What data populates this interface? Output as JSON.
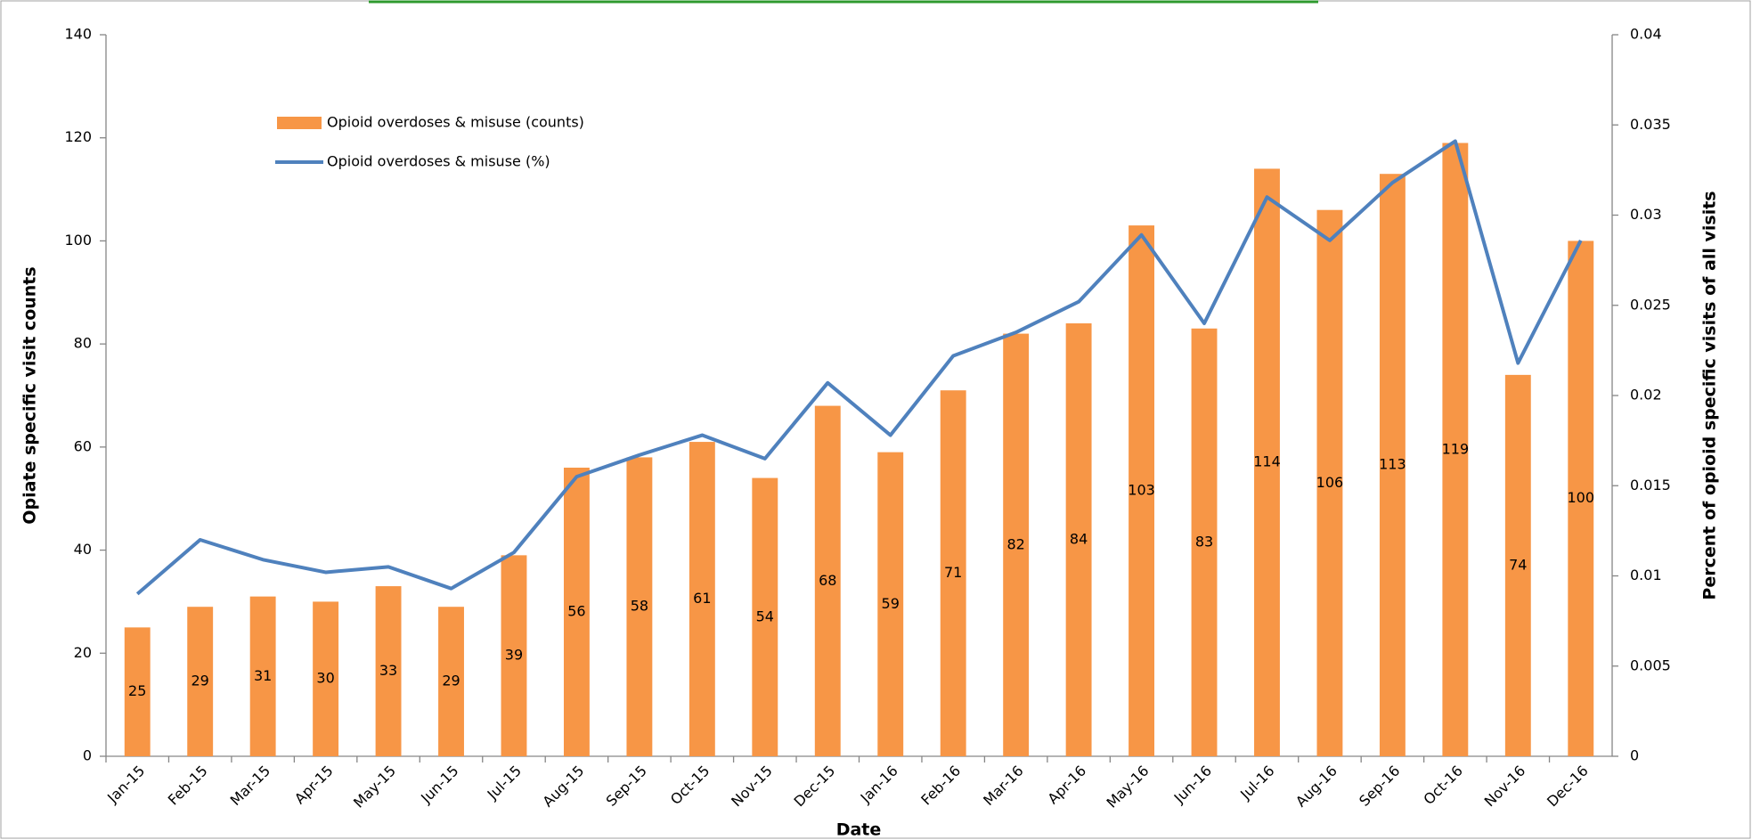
{
  "chart_data": {
    "type": "bar-line",
    "x_label": "Date",
    "y_label": "Opiate specific visit counts",
    "y2_label": "Percent of opioid specific visits of all visits",
    "categories": [
      "Jan-15",
      "Feb-15",
      "Mar-15",
      "Apr-15",
      "May-15",
      "Jun-15",
      "Jul-15",
      "Aug-15",
      "Sep-15",
      "Oct-15",
      "Nov-15",
      "Dec-15",
      "Jan-16",
      "Feb-16",
      "Mar-16",
      "Apr-16",
      "May-16",
      "Jun-16",
      "Jul-16",
      "Aug-16",
      "Sep-16",
      "Oct-16",
      "Nov-16",
      "Dec-16"
    ],
    "series": [
      {
        "name": "Opioid overdoses & misuse (counts)",
        "type": "bar",
        "color": "#f79646",
        "values": [
          25,
          29,
          31,
          30,
          33,
          29,
          39,
          56,
          58,
          61,
          54,
          68,
          59,
          71,
          82,
          84,
          103,
          83,
          114,
          106,
          113,
          119,
          74,
          100
        ]
      },
      {
        "name": "Opioid overdoses & misuse (%)",
        "type": "line",
        "axis": "y2",
        "color": "#4f81bd",
        "values": [
          0.009,
          0.012,
          0.0109,
          0.0102,
          0.0105,
          0.0093,
          0.0113,
          0.0155,
          0.0167,
          0.0178,
          0.0165,
          0.0207,
          0.0178,
          0.0222,
          0.0235,
          0.0252,
          0.0289,
          0.024,
          0.031,
          0.0286,
          0.0318,
          0.0341,
          0.0218,
          0.0286
        ]
      }
    ],
    "ylim": [
      0,
      140
    ],
    "yticks": [
      0,
      20,
      40,
      60,
      80,
      100,
      120,
      140
    ],
    "y2lim": [
      0,
      0.04
    ],
    "y2ticks": [
      0,
      0.005,
      0.01,
      0.015,
      0.02,
      0.025,
      0.03,
      0.035,
      0.04
    ],
    "grid": false,
    "legend": "top-left"
  }
}
